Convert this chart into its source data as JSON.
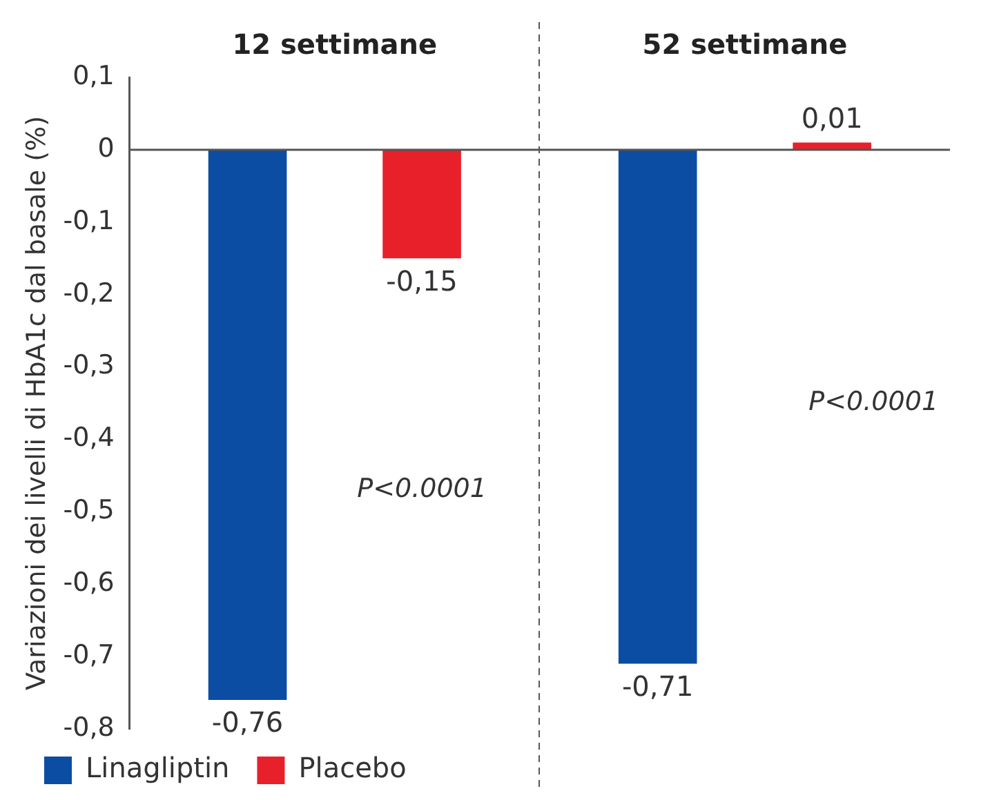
{
  "chart_data": {
    "type": "bar",
    "ylabel": "Variazioni dei livelli di HbA1c dal basale (%)",
    "categories": [
      "12 settimane",
      "52 settimane"
    ],
    "series": [
      {
        "name": "Linagliptin",
        "color": "#0b4da2",
        "values": [
          -0.76,
          -0.71
        ],
        "value_labels": [
          "-0,76",
          "-0,71"
        ]
      },
      {
        "name": "Placebo",
        "color": "#e8202a",
        "values": [
          -0.15,
          0.01
        ],
        "value_labels": [
          "-0,15",
          "0,01"
        ]
      }
    ],
    "ylim": [
      -0.8,
      0.1
    ],
    "yticks": [
      {
        "value": 0.1,
        "label": "0,1"
      },
      {
        "value": 0,
        "label": "0"
      },
      {
        "value": -0.1,
        "label": "-0,1"
      },
      {
        "value": -0.2,
        "label": "-0,2"
      },
      {
        "value": -0.3,
        "label": "-0,3"
      },
      {
        "value": -0.4,
        "label": "-0,4"
      },
      {
        "value": -0.5,
        "label": "-0,5"
      },
      {
        "value": -0.6,
        "label": "-0,6"
      },
      {
        "value": -0.7,
        "label": "-0,7"
      },
      {
        "value": -0.8,
        "label": "-0,8"
      }
    ],
    "annotations": [
      "P<0.0001",
      "P<0.0001"
    ],
    "legend": "bottom left"
  }
}
